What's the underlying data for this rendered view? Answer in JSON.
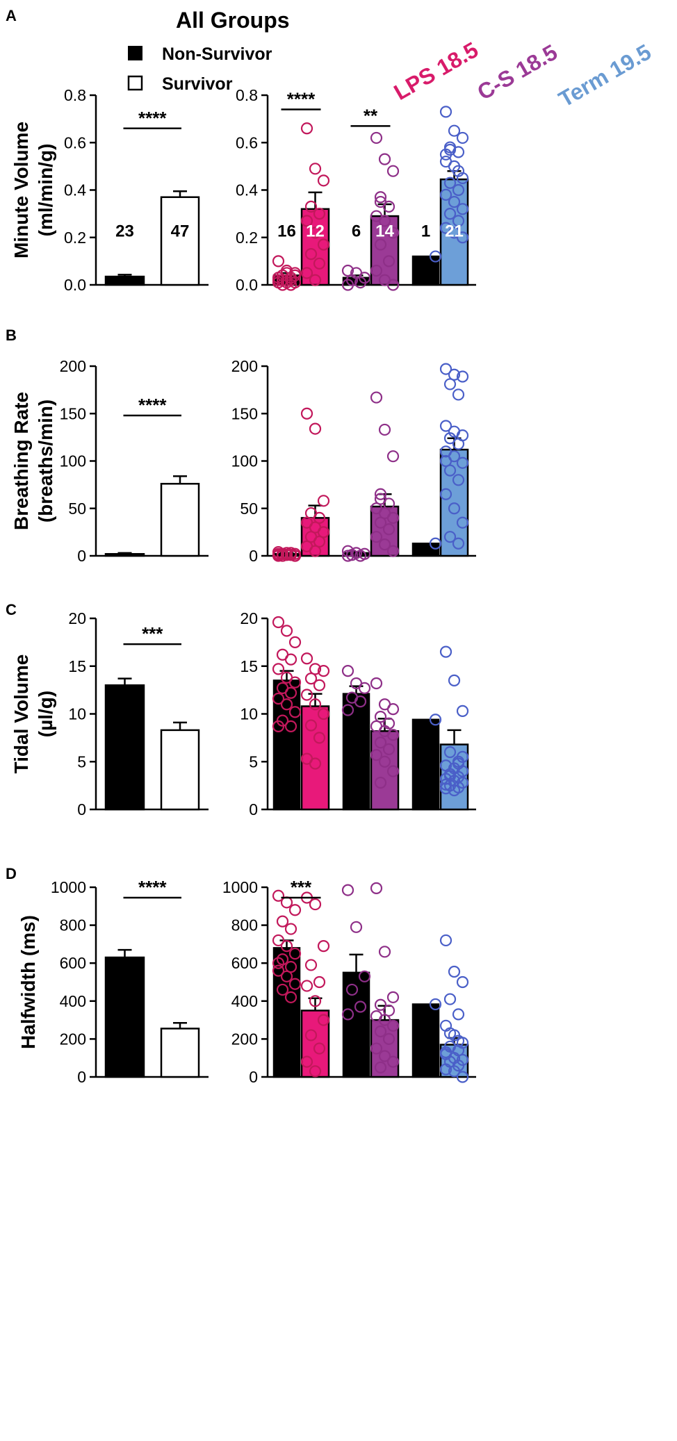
{
  "header": {
    "title": "All Groups",
    "legend_items": [
      {
        "label": "Non-Survivor",
        "fill": "#000000"
      },
      {
        "label": "Survivor",
        "fill": "#ffffff"
      }
    ],
    "group_labels": [
      {
        "label": "LPS 18.5",
        "color": "#d81b6a"
      },
      {
        "label": "C-S 18.5",
        "color": "#9b3a96"
      },
      {
        "label": "Term 19.5",
        "color": "#6a9bd2"
      }
    ]
  },
  "colors": {
    "lps": "#e8197a",
    "lps_dot": "#c2185b",
    "cs": "#9b3a96",
    "cs_dot": "#8e2f88",
    "term": "#6d9fd8",
    "term_dot": "#4a5fc8",
    "black": "#000000"
  },
  "chart_data": [
    {
      "panel": "A",
      "type": "bar",
      "ylabel_line1": "Minute Volume",
      "ylabel_line2": "(ml/min/g)",
      "ylim": [
        0,
        0.8
      ],
      "yticks": [
        "0.0",
        "0.2",
        "0.4",
        "0.6",
        "0.8"
      ],
      "left": {
        "categories": [
          "Non-Survivor",
          "Survivor"
        ],
        "values": [
          0.035,
          0.37
        ],
        "errors": [
          0.008,
          0.025
        ],
        "counts": [
          "23",
          "47"
        ],
        "count_y": 0.23,
        "sig": [
          {
            "from": 0,
            "to": 1,
            "y": 0.66,
            "label": "****"
          }
        ]
      },
      "right": {
        "groups": [
          "LPS 18.5",
          "C-S 18.5",
          "Term 19.5"
        ],
        "non_survivor": [
          0.04,
          0.03,
          0.12
        ],
        "non_survivor_err": [
          0.01,
          0.01,
          0
        ],
        "survivor": [
          0.32,
          0.29,
          0.445
        ],
        "survivor_err": [
          0.07,
          0.05,
          0.035
        ],
        "counts_ns": [
          "16",
          "6",
          "1"
        ],
        "counts_s": [
          "12",
          "14",
          "21"
        ],
        "count_y": 0.23,
        "points_ns": [
          [
            0.1,
            0.06,
            0.05,
            0.04,
            0.03,
            0.02,
            0.01,
            0.01,
            0.0,
            0.02,
            0.03,
            0.05,
            0.04,
            0.02,
            0.0,
            0.01
          ],
          [
            0.06,
            0.05,
            0.03,
            0.02,
            0.01,
            0.0
          ],
          [
            0.12
          ]
        ],
        "points_s": [
          [
            0.66,
            0.49,
            0.44,
            0.33,
            0.3,
            0.27,
            0.22,
            0.17,
            0.13,
            0.09,
            0.05,
            0.02
          ],
          [
            0.62,
            0.53,
            0.48,
            0.37,
            0.33,
            0.29,
            0.27,
            0.22,
            0.17,
            0.1,
            0.06,
            0.02,
            0.0,
            0.35
          ],
          [
            0.73,
            0.65,
            0.62,
            0.57,
            0.56,
            0.55,
            0.5,
            0.45,
            0.43,
            0.4,
            0.38,
            0.35,
            0.32,
            0.3,
            0.27,
            0.24,
            0.22,
            0.2,
            0.58,
            0.48,
            0.52
          ]
        ],
        "sig": [
          {
            "group": 0,
            "y": 0.74,
            "label": "****"
          },
          {
            "group": 1,
            "y": 0.67,
            "label": "**"
          }
        ]
      }
    },
    {
      "panel": "B",
      "type": "bar",
      "ylabel_line1": "Breathing Rate",
      "ylabel_line2": "(breaths/min)",
      "ylim": [
        0,
        200
      ],
      "yticks": [
        "0",
        "50",
        "100",
        "150",
        "200"
      ],
      "left": {
        "categories": [
          "Non-Survivor",
          "Survivor"
        ],
        "values": [
          2,
          76
        ],
        "errors": [
          1,
          8
        ],
        "sig": [
          {
            "from": 0,
            "to": 1,
            "y": 148,
            "label": "****"
          }
        ]
      },
      "right": {
        "groups": [
          "LPS 18.5",
          "C-S 18.5",
          "Term 19.5"
        ],
        "non_survivor": [
          2,
          3,
          13
        ],
        "non_survivor_err": [
          1,
          1,
          0
        ],
        "survivor": [
          40,
          52,
          112
        ],
        "survivor_err": [
          13,
          13,
          12
        ],
        "points_ns": [
          [
            4,
            3,
            2,
            2,
            1,
            1,
            1,
            0,
            0,
            3,
            2,
            1,
            0,
            2,
            1,
            0
          ],
          [
            5,
            3,
            2,
            1,
            0,
            0
          ],
          [
            13
          ]
        ],
        "points_s": [
          [
            150,
            134,
            58,
            45,
            40,
            35,
            30,
            25,
            20,
            15,
            10,
            5
          ],
          [
            167,
            133,
            105,
            65,
            55,
            50,
            45,
            40,
            35,
            28,
            20,
            12,
            5,
            60
          ],
          [
            197,
            191,
            189,
            181,
            170,
            137,
            131,
            127,
            124,
            118,
            110,
            105,
            98,
            90,
            80,
            65,
            50,
            35,
            20,
            13,
            100
          ]
        ],
        "sig": []
      }
    },
    {
      "panel": "C",
      "type": "bar",
      "ylabel_line1": "Tidal Volume",
      "ylabel_line2": "(µl/g)",
      "ylim": [
        0,
        20
      ],
      "yticks": [
        "0",
        "5",
        "10",
        "15",
        "20"
      ],
      "left": {
        "categories": [
          "Non-Survivor",
          "Survivor"
        ],
        "values": [
          13,
          8.3
        ],
        "errors": [
          0.7,
          0.8
        ],
        "sig": [
          {
            "from": 0,
            "to": 1,
            "y": 17.3,
            "label": "***"
          }
        ]
      },
      "right": {
        "groups": [
          "LPS 18.5",
          "C-S 18.5",
          "Term 19.5"
        ],
        "non_survivor": [
          13.5,
          12.1,
          9.4
        ],
        "non_survivor_err": [
          1.0,
          0.8,
          0
        ],
        "survivor": [
          10.8,
          8.2,
          6.8
        ],
        "survivor_err": [
          1.3,
          1.3,
          1.5
        ],
        "points_ns": [
          [
            19.6,
            18.7,
            17.5,
            16.2,
            15.7,
            14.7,
            13.8,
            13.3,
            12.7,
            12.2,
            11.6,
            11.0,
            10.2,
            9.3,
            8.7,
            8.7
          ],
          [
            14.5,
            13.2,
            12.7,
            11.7,
            11.3,
            10.4
          ],
          [
            9.4
          ]
        ],
        "points_s": [
          [
            15.8,
            14.7,
            14.5,
            13.7,
            13.0,
            12.0,
            11.0,
            10.0,
            8.8,
            7.5,
            5.3,
            4.8
          ],
          [
            13.2,
            11.0,
            10.5,
            9.7,
            9.0,
            8.7,
            8.2,
            7.8,
            7.0,
            6.3,
            5.7,
            5.0,
            4.0,
            2.8
          ],
          [
            16.5,
            13.5,
            10.3,
            6.0,
            5.0,
            4.6,
            4.3,
            4.0,
            3.7,
            3.4,
            3.2,
            3.0,
            2.8,
            2.5,
            2.3,
            2.2,
            2.0,
            5.5,
            3.5,
            4.8,
            2.6
          ]
        ],
        "sig": []
      }
    },
    {
      "panel": "D",
      "type": "bar",
      "ylabel_line1": "Halfwidth (ms)",
      "ylabel_line2": "",
      "ylim": [
        0,
        1000
      ],
      "yticks": [
        "0",
        "200",
        "400",
        "600",
        "800",
        "1000"
      ],
      "left": {
        "categories": [
          "Non-Survivor",
          "Survivor"
        ],
        "values": [
          630,
          255
        ],
        "errors": [
          40,
          30
        ],
        "sig": [
          {
            "from": 0,
            "to": 1,
            "y": 945,
            "label": "****"
          }
        ]
      },
      "right": {
        "groups": [
          "LPS 18.5",
          "C-S 18.5",
          "Term 19.5"
        ],
        "non_survivor": [
          680,
          550,
          383
        ],
        "non_survivor_err": [
          40,
          95,
          0
        ],
        "survivor": [
          350,
          300,
          170
        ],
        "survivor_err": [
          65,
          75,
          35
        ],
        "points_ns": [
          [
            955,
            920,
            880,
            820,
            780,
            720,
            690,
            650,
            620,
            580,
            560,
            530,
            490,
            460,
            420,
            600
          ],
          [
            985,
            790,
            530,
            460,
            370,
            330
          ],
          [
            383
          ]
        ],
        "points_s": [
          [
            945,
            910,
            690,
            590,
            500,
            480,
            400,
            300,
            220,
            150,
            80,
            30
          ],
          [
            995,
            660,
            420,
            380,
            350,
            320,
            300,
            270,
            240,
            200,
            150,
            110,
            80,
            50
          ],
          [
            720,
            555,
            500,
            410,
            330,
            270,
            220,
            180,
            160,
            140,
            120,
            100,
            90,
            80,
            60,
            40,
            30,
            0,
            230,
            190,
            130
          ]
        ],
        "sig": [
          {
            "group": 0,
            "y": 945,
            "label": "***"
          }
        ]
      }
    }
  ],
  "panel_labels": [
    "A",
    "B",
    "C",
    "D"
  ]
}
